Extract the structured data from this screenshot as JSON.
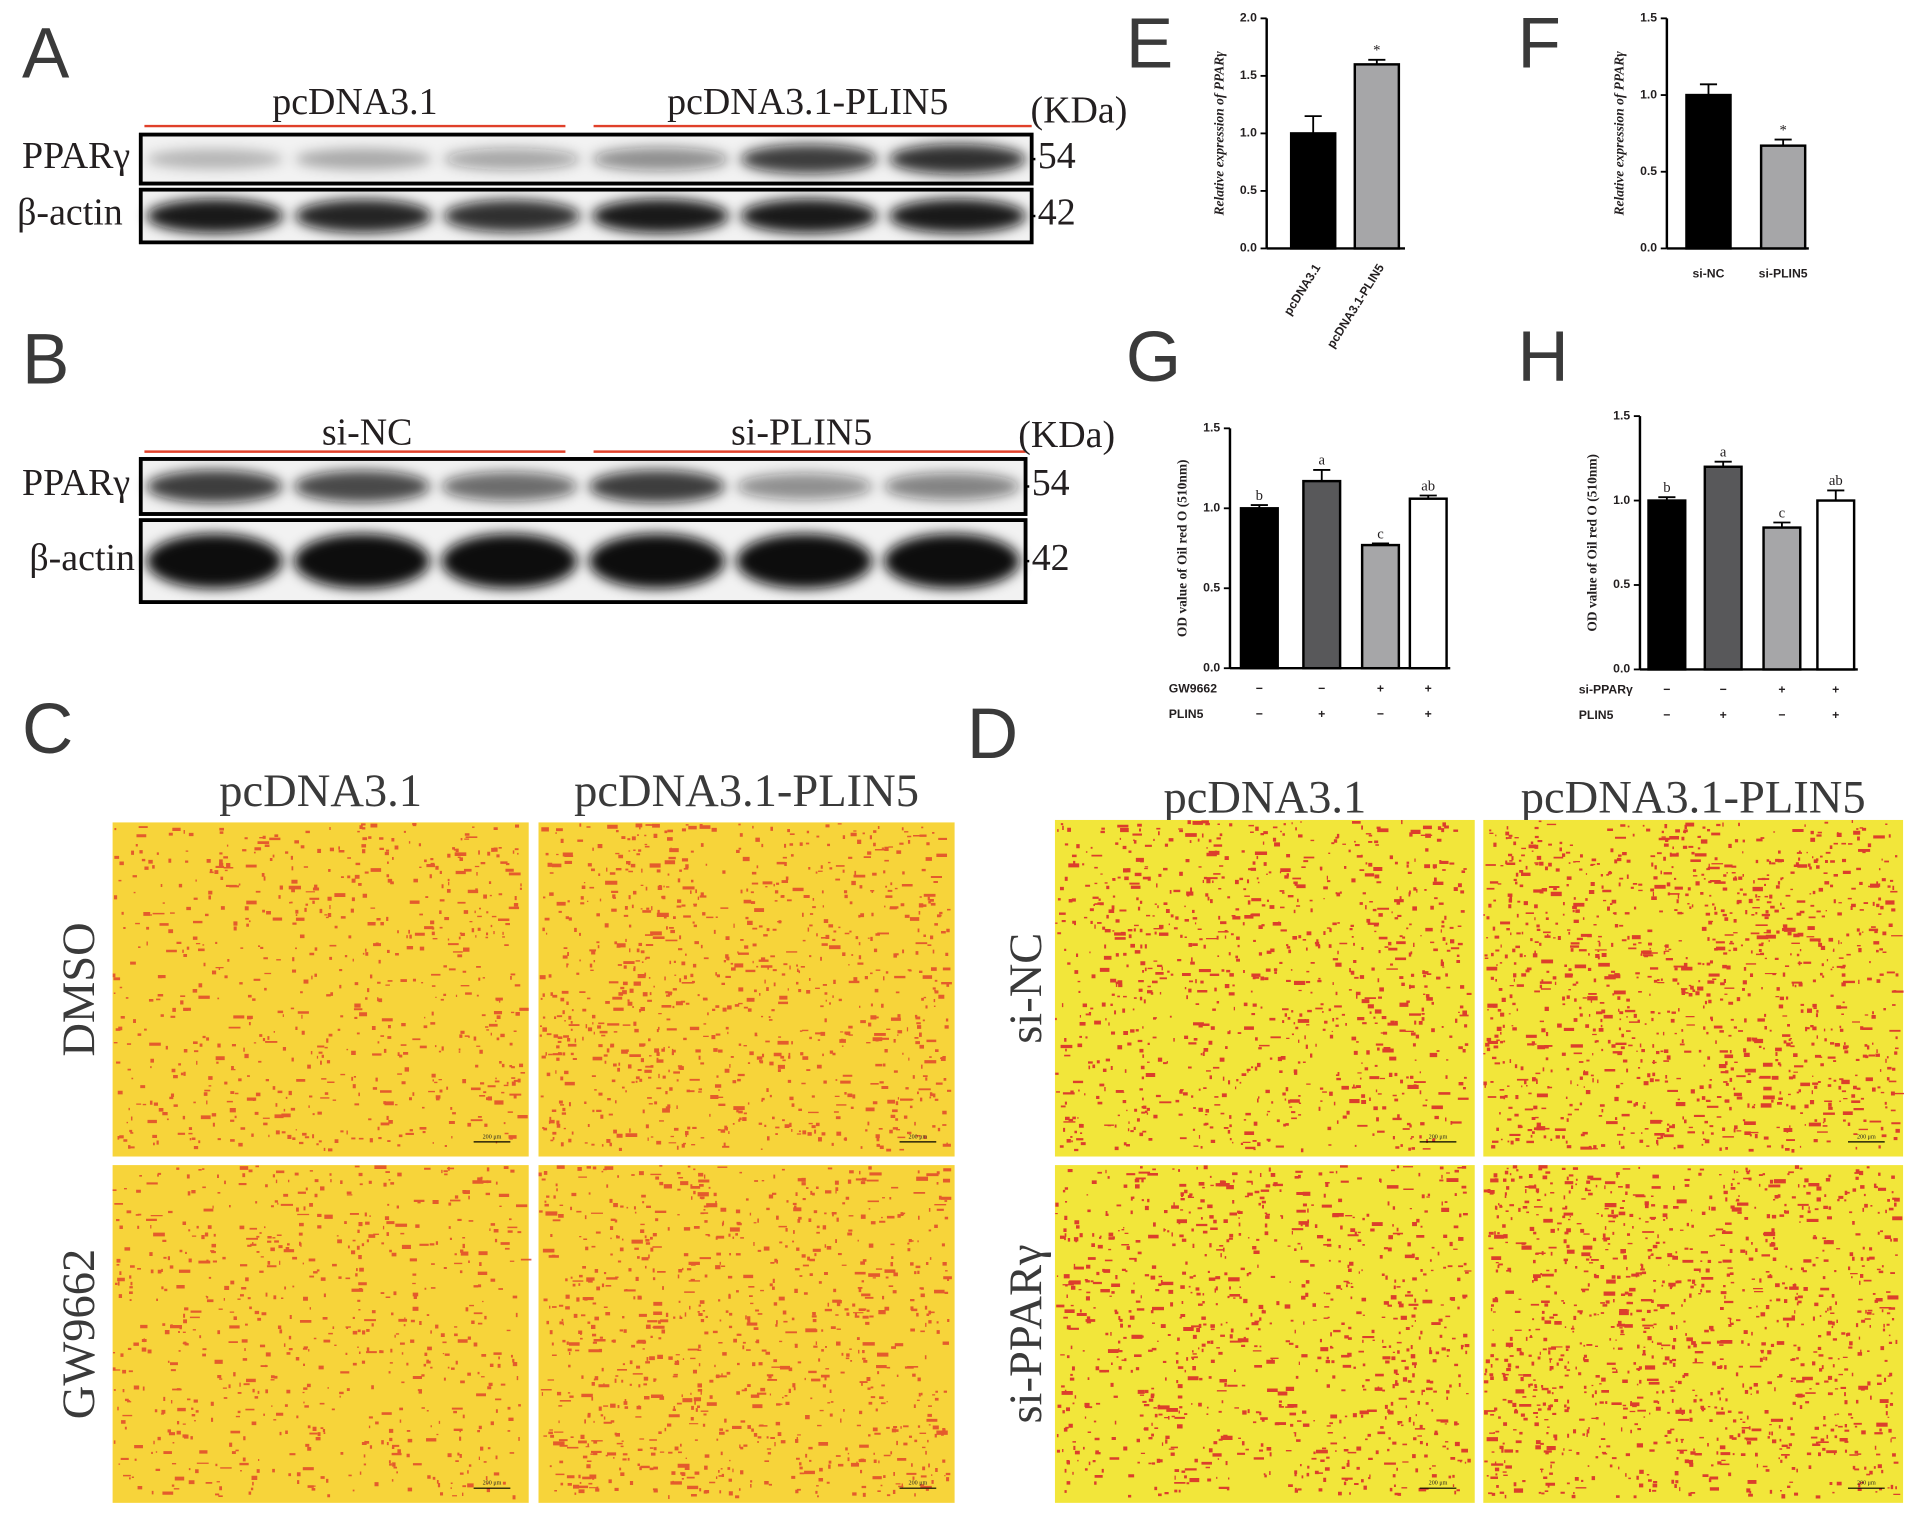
{
  "blots": [
    {
      "label": "A",
      "groups": [
        "pcDNA3.1",
        "pcDNA3.1-PLIN5"
      ],
      "unit": "(KDa)",
      "rows": [
        {
          "name": "PPARγ",
          "size": 54
        },
        {
          "name": "β-actin",
          "size": 42
        }
      ]
    },
    {
      "label": "B",
      "groups": [
        "si-NC",
        "si-PLIN5"
      ],
      "unit": "(KDa)",
      "rows": [
        {
          "name": "PPARγ",
          "size": 54
        },
        {
          "name": "β-actin",
          "size": 42
        }
      ]
    }
  ],
  "micrographs": [
    {
      "label": "C",
      "columns": [
        "pcDNA3.1",
        "pcDNA3.1-PLIN5"
      ],
      "rows": [
        "DMSO",
        "GW9662"
      ],
      "scale_bar": "200 μm"
    },
    {
      "label": "D",
      "columns": [
        "pcDNA3.1",
        "pcDNA3.1-PLIN5"
      ],
      "rows": [
        "si-NC",
        "si-PPARγ"
      ],
      "scale_bar": "200 μm"
    }
  ],
  "chart_data": [
    {
      "panel": "E",
      "type": "bar",
      "y_label": "Relative expression of PPARγ",
      "categories": [
        "pcDNA3.1",
        "pcDNA3.1-PLIN5"
      ],
      "values": [
        1.0,
        1.6
      ],
      "errors": [
        0.15,
        0.04
      ],
      "colors": [
        "#000000",
        "#a6a6a8"
      ],
      "annotations": [
        null,
        "*"
      ],
      "ylim": [
        0,
        2
      ],
      "yticks": [
        {
          "value": 0,
          "label": "0.0"
        },
        0.5,
        {
          "value": 1,
          "label": "1.0"
        },
        1.5,
        {
          "value": 2,
          "label": "2.0"
        }
      ]
    },
    {
      "panel": "F",
      "type": "bar",
      "y_label": "Relative expression of PPARγ",
      "categories": [
        "si-NC",
        "si-PLIN5"
      ],
      "values": [
        1.0,
        0.67
      ],
      "errors": [
        0.07,
        0.04
      ],
      "colors": [
        "#000000",
        "#a6a6a8"
      ],
      "annotations": [
        null,
        "*"
      ],
      "ylim": [
        0,
        1.5
      ],
      "yticks": [
        {
          "value": 0,
          "label": "0.0"
        },
        0.5,
        {
          "value": 1,
          "label": "1.0"
        },
        1.5
      ]
    },
    {
      "panel": "G",
      "type": "bar",
      "y_label": "OD value of Oil red O (510nm)",
      "values": [
        1.0,
        1.17,
        0.77,
        1.06
      ],
      "errors": [
        0.02,
        0.07,
        0.01,
        0.02
      ],
      "colors": [
        "#000000",
        "#58585a",
        "#a6a6a8",
        "#ffffff"
      ],
      "annotations": [
        "b",
        "a",
        "c",
        "ab"
      ],
      "conditions": [
        {
          "name": "GW9662",
          "signs": [
            "−",
            "−",
            "+",
            "+"
          ]
        },
        {
          "name": "PLIN5",
          "signs": [
            "−",
            "+",
            "−",
            "+"
          ]
        }
      ],
      "ylim": [
        0,
        1.5
      ],
      "yticks": [
        {
          "value": 0,
          "label": "0.0"
        },
        0.5,
        {
          "value": 1,
          "label": "1.0"
        },
        1.5
      ]
    },
    {
      "panel": "H",
      "type": "bar",
      "y_label": "OD value of Oil red O (510nm)",
      "values": [
        1.0,
        1.2,
        0.84,
        1.0
      ],
      "errors": [
        0.02,
        0.03,
        0.03,
        0.06
      ],
      "colors": [
        "#000000",
        "#58585a",
        "#a6a6a8",
        "#ffffff"
      ],
      "annotations": [
        "b",
        "a",
        "c",
        "ab"
      ],
      "conditions": [
        {
          "name": "si-PPARγ",
          "signs": [
            "−",
            "−",
            "+",
            "+"
          ]
        },
        {
          "name": "PLIN5",
          "signs": [
            "−",
            "+",
            "−",
            "+"
          ]
        }
      ],
      "ylim": [
        0,
        1.5
      ],
      "yticks": [
        {
          "value": 0,
          "label": "0.0"
        },
        0.5,
        {
          "value": 1,
          "label": "1.0"
        },
        1.5
      ]
    }
  ]
}
